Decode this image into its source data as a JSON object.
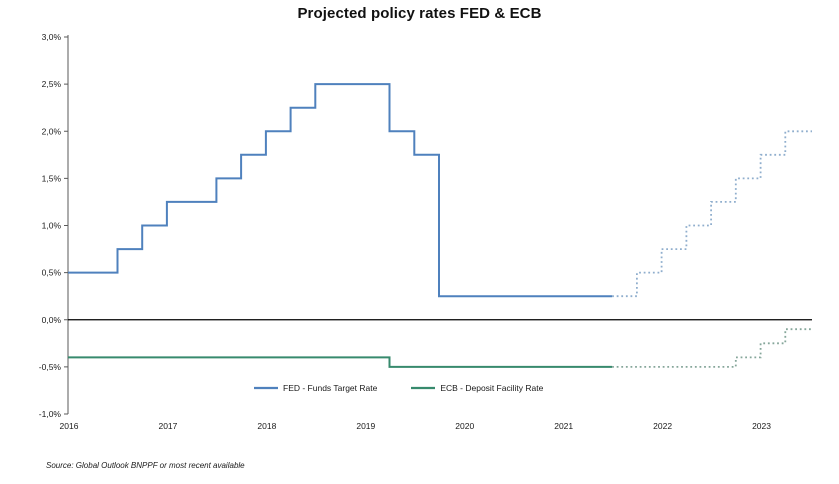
{
  "title": "Projected policy rates FED & ECB",
  "source_note": "Source: Global Outlook BNPPF or most recent available",
  "legend": [
    {
      "label": "FED - Funds Target Rate",
      "color": "#4F81BD"
    },
    {
      "label": "ECB - Deposit Facility Rate",
      "color": "#378A6D"
    }
  ],
  "chart_data": {
    "type": "line",
    "subtype": "step",
    "title": "Projected policy rates FED & ECB",
    "xlabel": "",
    "ylabel": "",
    "xlim": [
      2016,
      2023.52
    ],
    "ylim": [
      -1.0,
      3.0
    ],
    "grid": false,
    "legend_position": "bottom",
    "axis_color": "#595959",
    "zero_line_color": "#000000",
    "x_ticks": [
      {
        "v": 2016,
        "label": "2016"
      },
      {
        "v": 2017,
        "label": "2017"
      },
      {
        "v": 2018,
        "label": "2018"
      },
      {
        "v": 2019,
        "label": "2019"
      },
      {
        "v": 2020,
        "label": "2020"
      },
      {
        "v": 2021,
        "label": "2021"
      },
      {
        "v": 2022,
        "label": "2022"
      },
      {
        "v": 2023,
        "label": "2023"
      }
    ],
    "y_ticks": [
      {
        "v": 3.0,
        "label": "3,0%"
      },
      {
        "v": 2.5,
        "label": "2,5%"
      },
      {
        "v": 2.0,
        "label": "2,0%"
      },
      {
        "v": 1.5,
        "label": "1,5%"
      },
      {
        "v": 1.0,
        "label": "1,0%"
      },
      {
        "v": 0.5,
        "label": "0,5%"
      },
      {
        "v": 0.0,
        "label": "0,0%"
      },
      {
        "v": -0.5,
        "label": "-0,5%"
      },
      {
        "v": -1.0,
        "label": "-1,0%"
      }
    ],
    "series": [
      {
        "id": "fed-actual",
        "name": "FED - Funds Target Rate (actual)",
        "color": "#4F81BD",
        "style": "solid",
        "steps": [
          [
            2016.0,
            0.5
          ],
          [
            2016.5,
            0.75
          ],
          [
            2016.75,
            1.0
          ],
          [
            2017.0,
            1.25
          ],
          [
            2017.5,
            1.5
          ],
          [
            2017.75,
            1.75
          ],
          [
            2018.0,
            2.0
          ],
          [
            2018.25,
            2.25
          ],
          [
            2018.5,
            2.5
          ],
          [
            2019.25,
            2.0
          ],
          [
            2019.5,
            1.75
          ],
          [
            2019.75,
            0.25
          ]
        ],
        "x_end": 2021.5
      },
      {
        "id": "fed-projected",
        "name": "FED - Funds Target Rate (projected)",
        "color": "#8FAECD",
        "style": "dotted",
        "steps": [
          [
            2021.5,
            0.25
          ],
          [
            2021.75,
            0.5
          ],
          [
            2022.0,
            0.75
          ],
          [
            2022.25,
            1.0
          ],
          [
            2022.5,
            1.25
          ],
          [
            2022.75,
            1.5
          ],
          [
            2023.0,
            1.75
          ],
          [
            2023.25,
            2.0
          ]
        ],
        "x_end": 2023.52
      },
      {
        "id": "ecb-actual",
        "name": "ECB - Deposit Facility Rate (actual)",
        "color": "#378A6D",
        "style": "solid",
        "steps": [
          [
            2016.0,
            -0.4
          ],
          [
            2019.25,
            -0.5
          ]
        ],
        "x_end": 2021.5
      },
      {
        "id": "ecb-projected",
        "name": "ECB - Deposit Facility Rate (projected)",
        "color": "#85A69A",
        "style": "dotted",
        "steps": [
          [
            2021.5,
            -0.5
          ],
          [
            2022.75,
            -0.4
          ],
          [
            2023.0,
            -0.25
          ],
          [
            2023.25,
            -0.1
          ]
        ],
        "x_end": 2023.52
      }
    ]
  }
}
